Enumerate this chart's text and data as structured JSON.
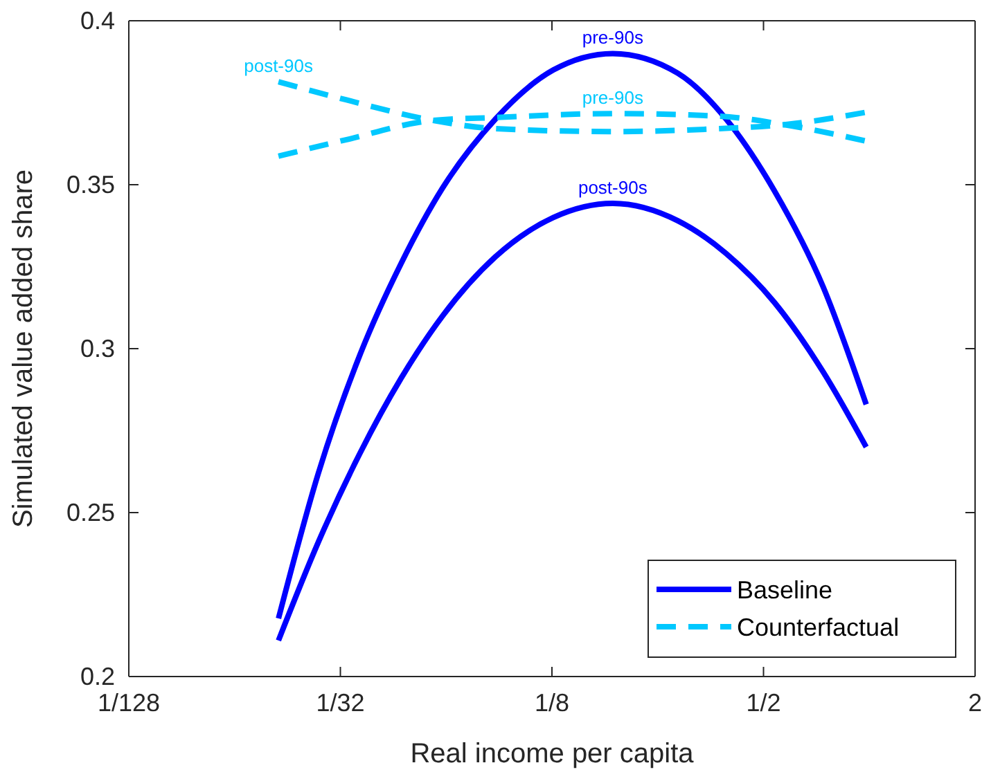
{
  "chart_data": {
    "type": "line",
    "xlabel": "Real income per capita",
    "ylabel": "Simulated value added share",
    "log": "x",
    "xlim": [
      0.0078125,
      2
    ],
    "xticks": [
      {
        "value": 0.0078125,
        "label": "1/128"
      },
      {
        "value": 0.03125,
        "label": "1/32"
      },
      {
        "value": 0.125,
        "label": "1/8"
      },
      {
        "value": 0.5,
        "label": "1/2"
      },
      2
    ],
    "ylim": [
      0.2,
      0.4
    ],
    "yticks": [
      0.2,
      0.25,
      0.3,
      0.35,
      0.4
    ],
    "grid": false,
    "legend": "bottom right",
    "series": [
      {
        "name": "Baseline",
        "color": "#0000ff",
        "line_style": "solid",
        "x": [
          0.02083,
          0.02705,
          0.03549,
          0.04654,
          0.06107,
          0.08628,
          0.1262,
          0.1862,
          0.2852,
          0.3914,
          0.5379,
          0.7381,
          0.98
        ],
        "values": [
          0.2177,
          0.262,
          0.298,
          0.326,
          0.349,
          0.37,
          0.385,
          0.39,
          0.384,
          0.37,
          0.348,
          0.319,
          0.283
        ]
      },
      {
        "color": "#0000ff",
        "line_style": "solid",
        "x": [
          0.02083,
          0.02705,
          0.03549,
          0.04654,
          0.06107,
          0.08628,
          0.1262,
          0.1862,
          0.2852,
          0.3914,
          0.5379,
          0.7381,
          0.98
        ],
        "values": [
          0.211,
          0.241,
          0.268,
          0.291,
          0.31,
          0.328,
          0.34,
          0.3443,
          0.339,
          0.329,
          0.314,
          0.293,
          0.27
        ]
      },
      {
        "name": "Counterfactual",
        "color": "#00c8ff",
        "line_style": "dashed",
        "x": [
          0.02083,
          0.0324,
          0.05733,
          0.08628,
          0.1862,
          0.374,
          0.573,
          0.98
        ],
        "values": [
          0.3587,
          0.3637,
          0.3696,
          0.3705,
          0.3717,
          0.3709,
          0.3683,
          0.3633
        ]
      },
      {
        "color": "#00c8ff",
        "line_style": "dashed",
        "x": [
          0.02083,
          0.0324,
          0.05733,
          0.08628,
          0.1862,
          0.374,
          0.573,
          0.98
        ],
        "values": [
          0.3814,
          0.3759,
          0.3696,
          0.3671,
          0.3662,
          0.3671,
          0.3683,
          0.3721
        ]
      }
    ],
    "annotations": [
      "pre-90s",
      "post-90s",
      "pre-90s",
      "post-90s"
    ]
  }
}
